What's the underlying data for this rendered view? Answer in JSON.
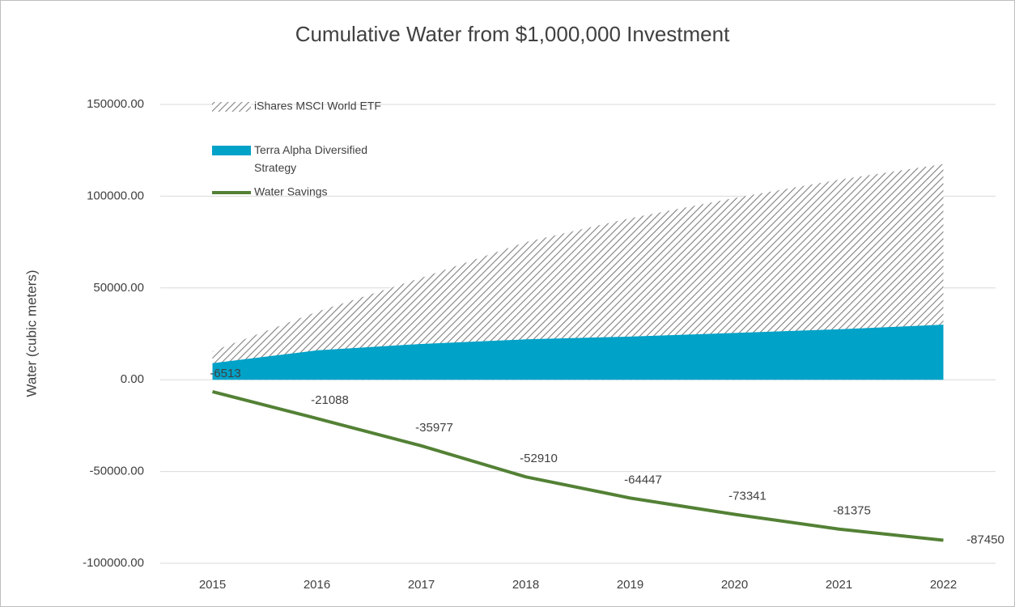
{
  "chart_data": {
    "type": "area",
    "title": "Cumulative Water from $1,000,000 Investment",
    "y_label": "Water  (cubic meters)",
    "categories": [
      "2015",
      "2016",
      "2017",
      "2018",
      "2019",
      "2020",
      "2021",
      "2022"
    ],
    "series": [
      {
        "name": "iShares MSCI World ETF",
        "type": "area",
        "color": "#808080",
        "pattern": "hatch",
        "values": [
          15500,
          37000,
          55500,
          75000,
          88000,
          99000,
          109000,
          117500
        ]
      },
      {
        "name": "Terra Alpha Diversified Strategy",
        "type": "area",
        "color": "#00a2c8",
        "values": [
          9000,
          16000,
          19500,
          22000,
          23500,
          25500,
          27500,
          30000
        ]
      },
      {
        "name": "Water Savings",
        "type": "line",
        "color": "#538135",
        "values": [
          -6513,
          -21088,
          -35977,
          -52910,
          -64447,
          -73341,
          -81375,
          -87450
        ],
        "data_labels": true
      }
    ],
    "ylim": [
      -100000,
      150000
    ],
    "yticks": [
      {
        "value": -100000,
        "label": "-100000.00"
      },
      {
        "value": -50000,
        "label": "-50000.00"
      },
      {
        "value": 0,
        "label": "0.00"
      },
      {
        "value": 50000,
        "label": "50000.00"
      },
      {
        "value": 100000,
        "label": "100000.00"
      },
      {
        "value": 150000,
        "label": "150000.00"
      }
    ],
    "grid": true,
    "legend": "upper-left"
  }
}
